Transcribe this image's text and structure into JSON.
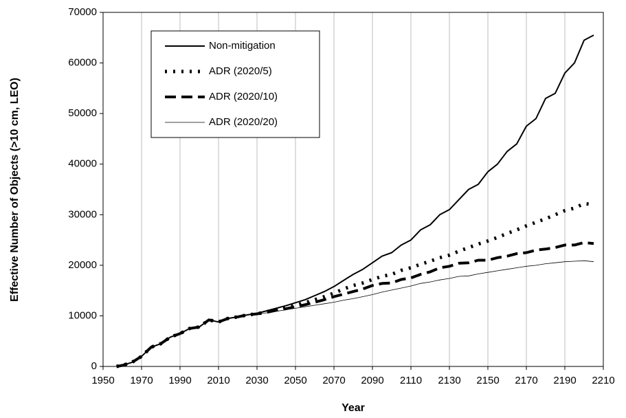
{
  "chart_data": {
    "type": "line",
    "x_label": "Year",
    "y_label": "Effective Number of Objects (>10 cm, LEO)",
    "x": [
      1957,
      1960,
      1965,
      1970,
      1975,
      1980,
      1985,
      1990,
      1995,
      2000,
      2005,
      2010,
      2015,
      2020,
      2025,
      2030,
      2035,
      2040,
      2045,
      2050,
      2055,
      2060,
      2065,
      2070,
      2075,
      2080,
      2085,
      2090,
      2095,
      2100,
      2105,
      2110,
      2115,
      2120,
      2125,
      2130,
      2135,
      2140,
      2145,
      2150,
      2155,
      2160,
      2165,
      2170,
      2175,
      2180,
      2185,
      2190,
      2195,
      2200,
      2205
    ],
    "series": [
      {
        "name": "Non-mitigation",
        "color": "#000000",
        "width": 2,
        "dash": "none",
        "values": [
          0,
          200,
          800,
          2000,
          3800,
          4500,
          5800,
          6500,
          7500,
          7800,
          9200,
          8800,
          9500,
          9800,
          10200,
          10500,
          11000,
          11500,
          12000,
          12600,
          13200,
          14000,
          14800,
          15800,
          17000,
          18200,
          19200,
          20500,
          21800,
          22500,
          24000,
          25000,
          27000,
          28000,
          30000,
          31000,
          33000,
          35000,
          36000,
          38500,
          40000,
          42500,
          44000,
          47500,
          49000,
          53000,
          54000,
          58000,
          60000,
          64500,
          65500
        ]
      },
      {
        "name": "ADR (2020/5)",
        "color": "#000000",
        "width": 5,
        "dash": "3,9",
        "values": [
          0,
          200,
          800,
          2000,
          3800,
          4500,
          5800,
          6500,
          7500,
          7800,
          9200,
          8800,
          9500,
          9800,
          10200,
          10400,
          10800,
          11200,
          11600,
          12100,
          12600,
          13200,
          13800,
          14500,
          15300,
          16000,
          16500,
          17200,
          17800,
          18200,
          19000,
          19500,
          20200,
          20800,
          21500,
          22000,
          22800,
          23500,
          24200,
          24800,
          25500,
          26300,
          27000,
          27800,
          28500,
          29200,
          30000,
          30800,
          31300,
          32200,
          32000
        ]
      },
      {
        "name": "ADR (2020/10)",
        "color": "#000000",
        "width": 4,
        "dash": "16,8",
        "values": [
          0,
          200,
          800,
          2000,
          3800,
          4500,
          5800,
          6500,
          7500,
          7800,
          9200,
          8800,
          9500,
          9800,
          10200,
          10400,
          10700,
          11100,
          11400,
          11800,
          12200,
          12700,
          13200,
          13800,
          14300,
          14800,
          15300,
          16000,
          16400,
          16500,
          17200,
          17500,
          18200,
          18700,
          19500,
          19800,
          20400,
          20500,
          21000,
          21000,
          21500,
          21800,
          22300,
          22500,
          23000,
          23200,
          23500,
          24000,
          24000,
          24500,
          24300
        ]
      },
      {
        "name": "ADR (2020/20)",
        "color": "#000000",
        "width": 0.8,
        "dash": "none",
        "values": [
          0,
          200,
          800,
          2000,
          3800,
          4500,
          5800,
          6500,
          7500,
          7800,
          9200,
          8800,
          9500,
          9800,
          10200,
          10300,
          10600,
          10900,
          11200,
          11500,
          11800,
          12100,
          12400,
          12700,
          13100,
          13400,
          13800,
          14200,
          14700,
          15100,
          15500,
          15900,
          16400,
          16700,
          17100,
          17400,
          17800,
          17900,
          18300,
          18600,
          18900,
          19200,
          19500,
          19800,
          20000,
          20300,
          20500,
          20700,
          20800,
          20900,
          20700
        ]
      }
    ],
    "xlim": [
      1950,
      2210
    ],
    "xticks": [
      1950,
      1970,
      1990,
      2010,
      2030,
      2050,
      2070,
      2090,
      2110,
      2130,
      2150,
      2170,
      2190,
      2210
    ],
    "ylim": [
      0,
      70000
    ],
    "yticks": [
      0,
      10000,
      20000,
      30000,
      40000,
      50000,
      60000,
      70000
    ],
    "grid": "x",
    "legend": "upper left"
  }
}
